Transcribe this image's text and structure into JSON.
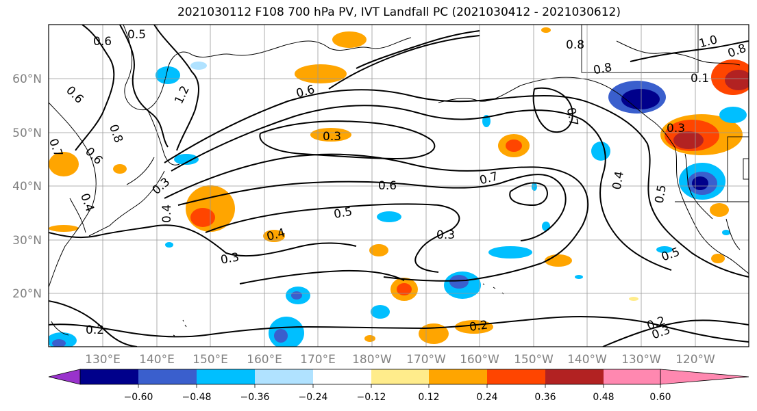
{
  "title": "2021030112 F108 700 hPa PV, IVT Landfall PC (2021030412 - 2021030612)",
  "lat_labels": [
    "60°N",
    "50°N",
    "40°N",
    "30°N",
    "20°N"
  ],
  "lon_labels": [
    "130°E",
    "140°E",
    "150°E",
    "160°E",
    "170°E",
    "180°W",
    "170°W",
    "160°W",
    "150°W",
    "140°W",
    "130°W",
    "120°W"
  ],
  "colorbar": {
    "ticks": [
      "−0.60",
      "−0.48",
      "−0.36",
      "−0.24",
      "−0.12",
      "0.12",
      "0.24",
      "0.36",
      "0.48",
      "0.60"
    ],
    "colors": [
      "#9932cc",
      "#00008b",
      "#3a5fcd",
      "#00bfff",
      "#b0e2ff",
      "#ffffff",
      "#ffec8b",
      "#ffa500",
      "#ff4500",
      "#b22222",
      "#ff88b0"
    ]
  },
  "contour_labels": [
    {
      "text": "0.5"
    },
    {
      "text": "0.6"
    },
    {
      "text": "0.6"
    },
    {
      "text": "1.2"
    },
    {
      "text": "0.6"
    },
    {
      "text": "0.7"
    },
    {
      "text": "0.6"
    },
    {
      "text": "0.4"
    },
    {
      "text": "0.8"
    },
    {
      "text": "0.3"
    },
    {
      "text": "0.3"
    },
    {
      "text": "0.6"
    },
    {
      "text": "0.7"
    },
    {
      "text": "0.5"
    },
    {
      "text": "0.4"
    },
    {
      "text": "0.3"
    },
    {
      "text": "0.3"
    },
    {
      "text": "0.8"
    },
    {
      "text": "0.8"
    },
    {
      "text": "1.0"
    },
    {
      "text": "0.8"
    },
    {
      "text": "0.7"
    },
    {
      "text": "0.3"
    },
    {
      "text": "0.4"
    },
    {
      "text": "0.5"
    },
    {
      "text": "0.5"
    },
    {
      "text": "0.2"
    },
    {
      "text": "0.2"
    },
    {
      "text": "0.3"
    },
    {
      "text": "0.2"
    },
    {
      "text": "0.4"
    },
    {
      "text": "0.1"
    }
  ]
}
